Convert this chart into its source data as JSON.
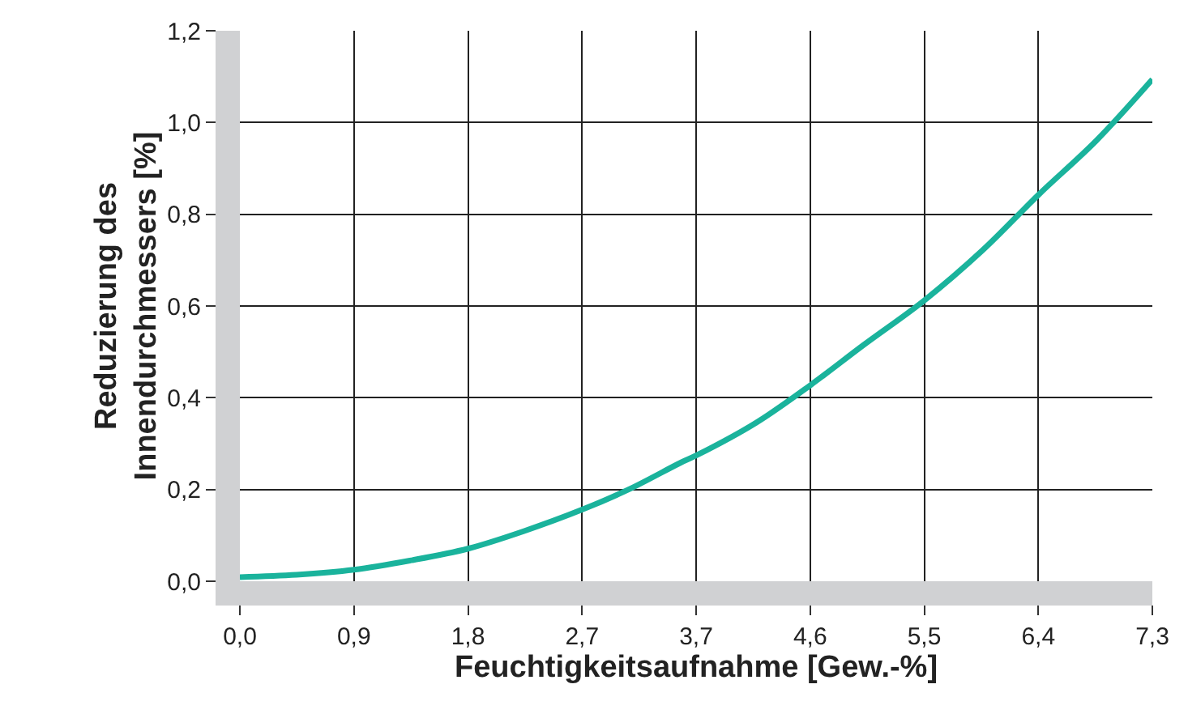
{
  "chart_data": {
    "type": "line",
    "xlabel": "Feuchtigkeitsaufnahme [Gew.-%]",
    "ylabel": "Reduzierung des\nInnendurchmessers [%]",
    "x": [
      0,
      0.454,
      0.9125,
      1.36,
      1.825,
      2.27,
      2.7375,
      3.11,
      3.53,
      3.65,
      4.127,
      4.5625,
      4.99,
      5.475,
      5.94,
      6.3875,
      6.85,
      7.3
    ],
    "series": [
      {
        "color": "#1ab39c",
        "values": [
          0.009,
          0.014,
          0.025,
          0.045,
          0.071,
          0.109,
          0.156,
          0.2,
          0.259,
          0.274,
          0.345,
          0.427,
          0.515,
          0.612,
          0.721,
          0.842,
          0.96,
          1.094
        ]
      }
    ],
    "xlim": [
      0,
      7.3
    ],
    "ylim": [
      0,
      1.2
    ],
    "xticks": [
      {
        "value": 0,
        "label": "0,0"
      },
      {
        "value": 0.9125,
        "label": "0,9"
      },
      {
        "value": 1.825,
        "label": "1,8"
      },
      {
        "value": 2.7375,
        "label": "2,7"
      },
      {
        "value": 3.65,
        "label": "3,7"
      },
      {
        "value": 4.5625,
        "label": "4,6"
      },
      {
        "value": 5.475,
        "label": "5,5"
      },
      {
        "value": 6.3875,
        "label": "6,4"
      },
      {
        "value": 7.3,
        "label": "7,3"
      }
    ],
    "yticks": [
      {
        "value": 0,
        "label": "0,0"
      },
      {
        "value": 0.2,
        "label": "0,2"
      },
      {
        "value": 0.4,
        "label": "0,4"
      },
      {
        "value": 0.6,
        "label": "0,6"
      },
      {
        "value": 0.8,
        "label": "0,8"
      },
      {
        "value": 1.0,
        "label": "1,0"
      },
      {
        "value": 1.2,
        "label": "1,2"
      }
    ],
    "grid": true,
    "marker": "none",
    "line_style": "solid"
  }
}
